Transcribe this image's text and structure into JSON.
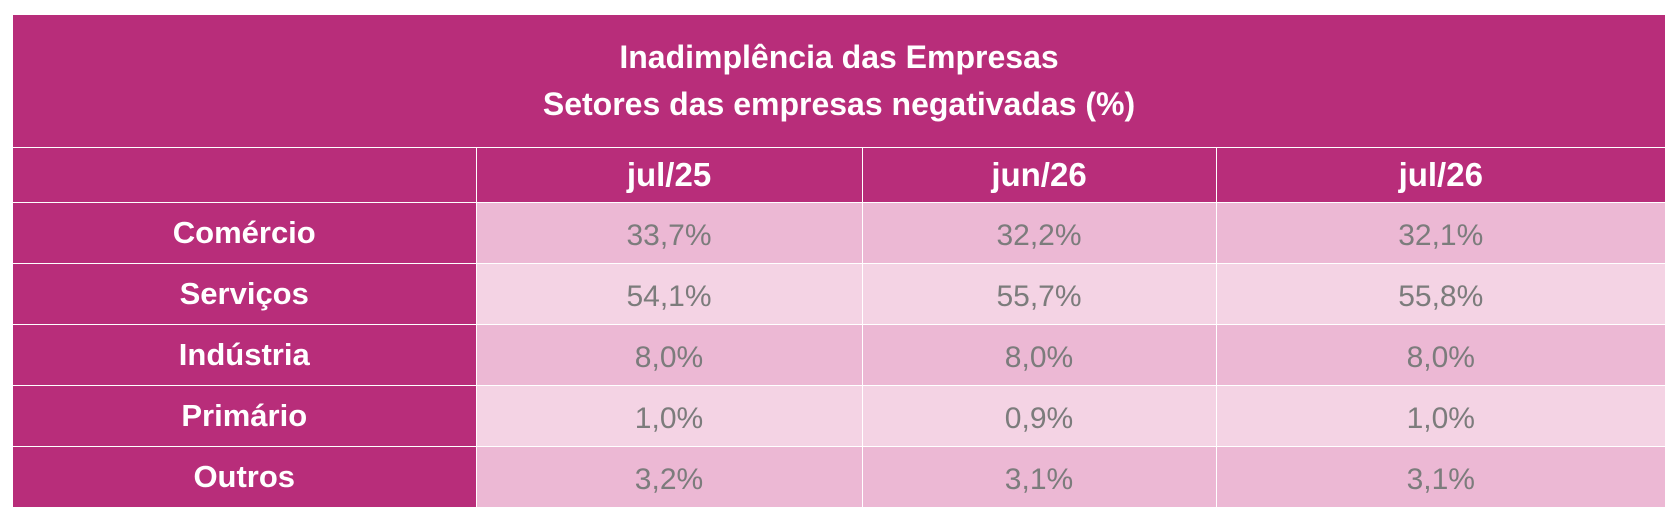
{
  "chart_data": {
    "type": "table",
    "title": "Inadimplência das Empresas",
    "subtitle": "Setores das empresas negativadas (%)",
    "columns": [
      "jul/25",
      "jun/26",
      "jul/26"
    ],
    "rows": [
      {
        "label": "Comércio",
        "values": [
          "33,7%",
          "32,2%",
          "32,1%"
        ]
      },
      {
        "label": "Serviços",
        "values": [
          "54,1%",
          "55,7%",
          "55,8%"
        ]
      },
      {
        "label": "Indústria",
        "values": [
          "8,0%",
          "8,0%",
          "8,0%"
        ]
      },
      {
        "label": "Primário",
        "values": [
          "1,0%",
          "0,9%",
          "1,0%"
        ]
      },
      {
        "label": "Outros",
        "values": [
          "3,2%",
          "3,1%",
          "3,1%"
        ]
      }
    ]
  },
  "colors": {
    "header_bg": "#b82d7a",
    "header_text": "#ffffff",
    "row_odd_bg": "#ecb8d4",
    "row_even_bg": "#f4d3e4",
    "value_text": "#7c7c7c"
  }
}
